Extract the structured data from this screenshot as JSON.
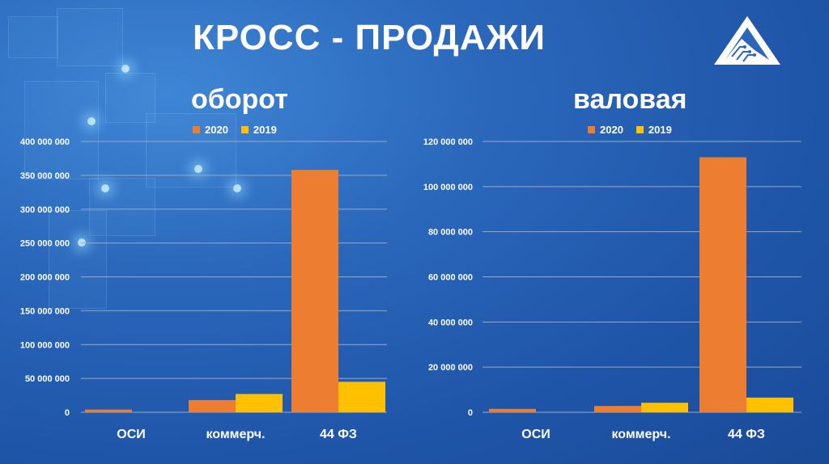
{
  "page": {
    "title": "КРОСС - ПРОДАЖИ"
  },
  "colors": {
    "series_2020": "#ed7d31",
    "series_2019": "#ffc000",
    "text": "#ffffff",
    "grid": "#9aa9bf"
  },
  "logo": {
    "icon": "triangle-circuit-logo-icon"
  },
  "chart_data": [
    {
      "type": "bar",
      "title": "оборот",
      "categories": [
        "ОСИ",
        "коммерч.",
        "44 ФЗ"
      ],
      "series": [
        {
          "name": "2020",
          "values": [
            4000000,
            18000000,
            358000000
          ]
        },
        {
          "name": "2019",
          "values": [
            0,
            27000000,
            45000000
          ]
        }
      ],
      "ylim": [
        0,
        400000000
      ],
      "yticks": [
        0,
        50000000,
        100000000,
        150000000,
        200000000,
        250000000,
        300000000,
        350000000,
        400000000
      ],
      "ytick_labels": [
        "0",
        "50 000 000",
        "100 000 000",
        "150 000 000",
        "200 000 000",
        "250 000 000",
        "300 000 000",
        "350 000 000",
        "400 000 000"
      ],
      "grid": true,
      "legend": "top"
    },
    {
      "type": "bar",
      "title": "валовая",
      "categories": [
        "ОСИ",
        "коммерч.",
        "44 ФЗ"
      ],
      "series": [
        {
          "name": "2020",
          "values": [
            1500000,
            2800000,
            113000000
          ]
        },
        {
          "name": "2019",
          "values": [
            0,
            4200000,
            6500000
          ]
        }
      ],
      "ylim": [
        0,
        120000000
      ],
      "yticks": [
        0,
        20000000,
        40000000,
        60000000,
        80000000,
        100000000,
        120000000
      ],
      "ytick_labels": [
        "0",
        "20 000 000",
        "40 000 000",
        "60 000 000",
        "80 000 000",
        "100 000 000",
        "120 000 000"
      ],
      "grid": true,
      "legend": "top"
    }
  ]
}
